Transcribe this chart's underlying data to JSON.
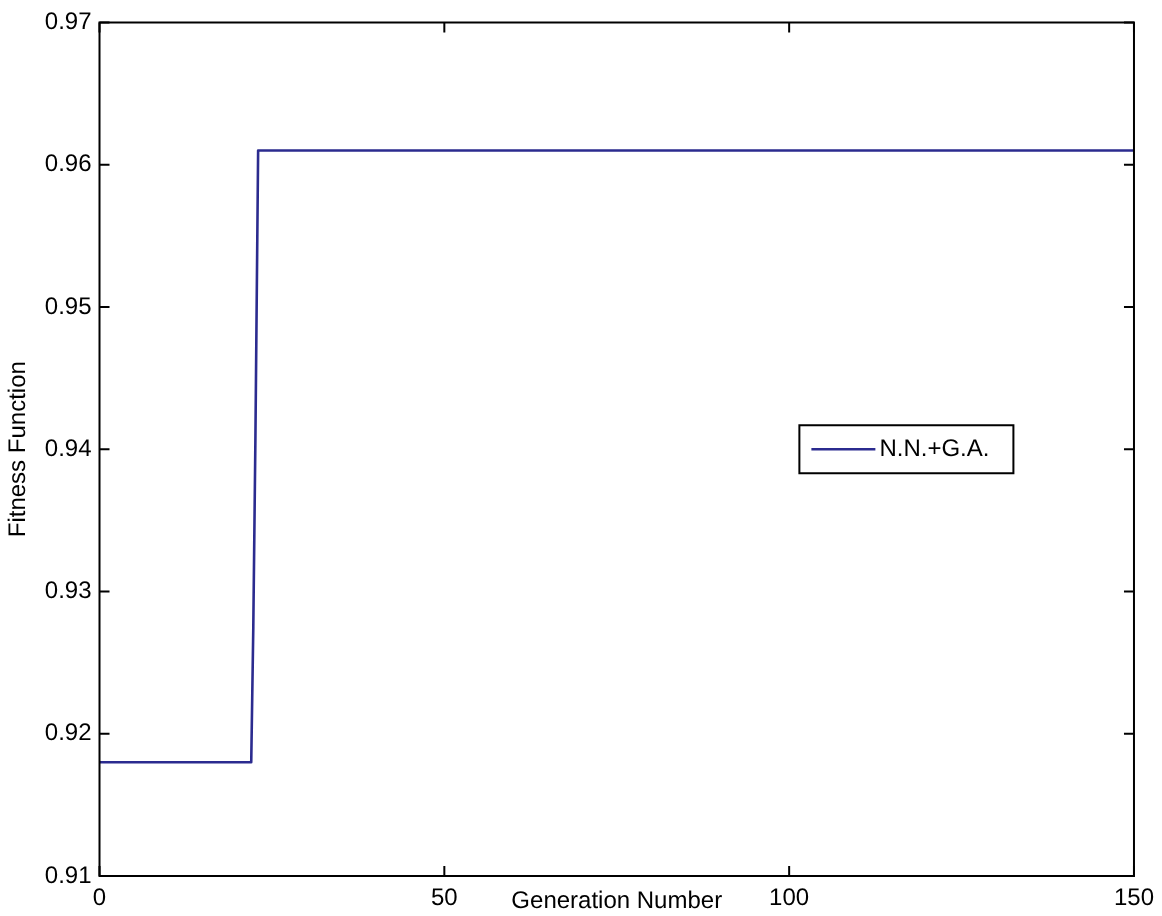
{
  "chart_data": {
    "type": "line",
    "xlabel": "Generation Number",
    "ylabel": "Fitness Function",
    "series": [
      {
        "name": "N.N.+G.A.",
        "color": "#2b2b8f",
        "x": [
          0,
          22,
          22.3,
          22.6,
          23,
          150
        ],
        "values": [
          0.918,
          0.918,
          0.9275,
          0.9405,
          0.961,
          0.961
        ]
      }
    ],
    "xlim": [
      0,
      150
    ],
    "xticks": [
      0,
      50,
      100,
      150
    ],
    "ylim": [
      0.91,
      0.97
    ],
    "yticks": [
      0.91,
      0.92,
      0.93,
      0.94,
      0.95,
      0.96,
      0.97
    ],
    "grid": false,
    "legend": "right",
    "marker": "none",
    "line_style": "solid"
  }
}
